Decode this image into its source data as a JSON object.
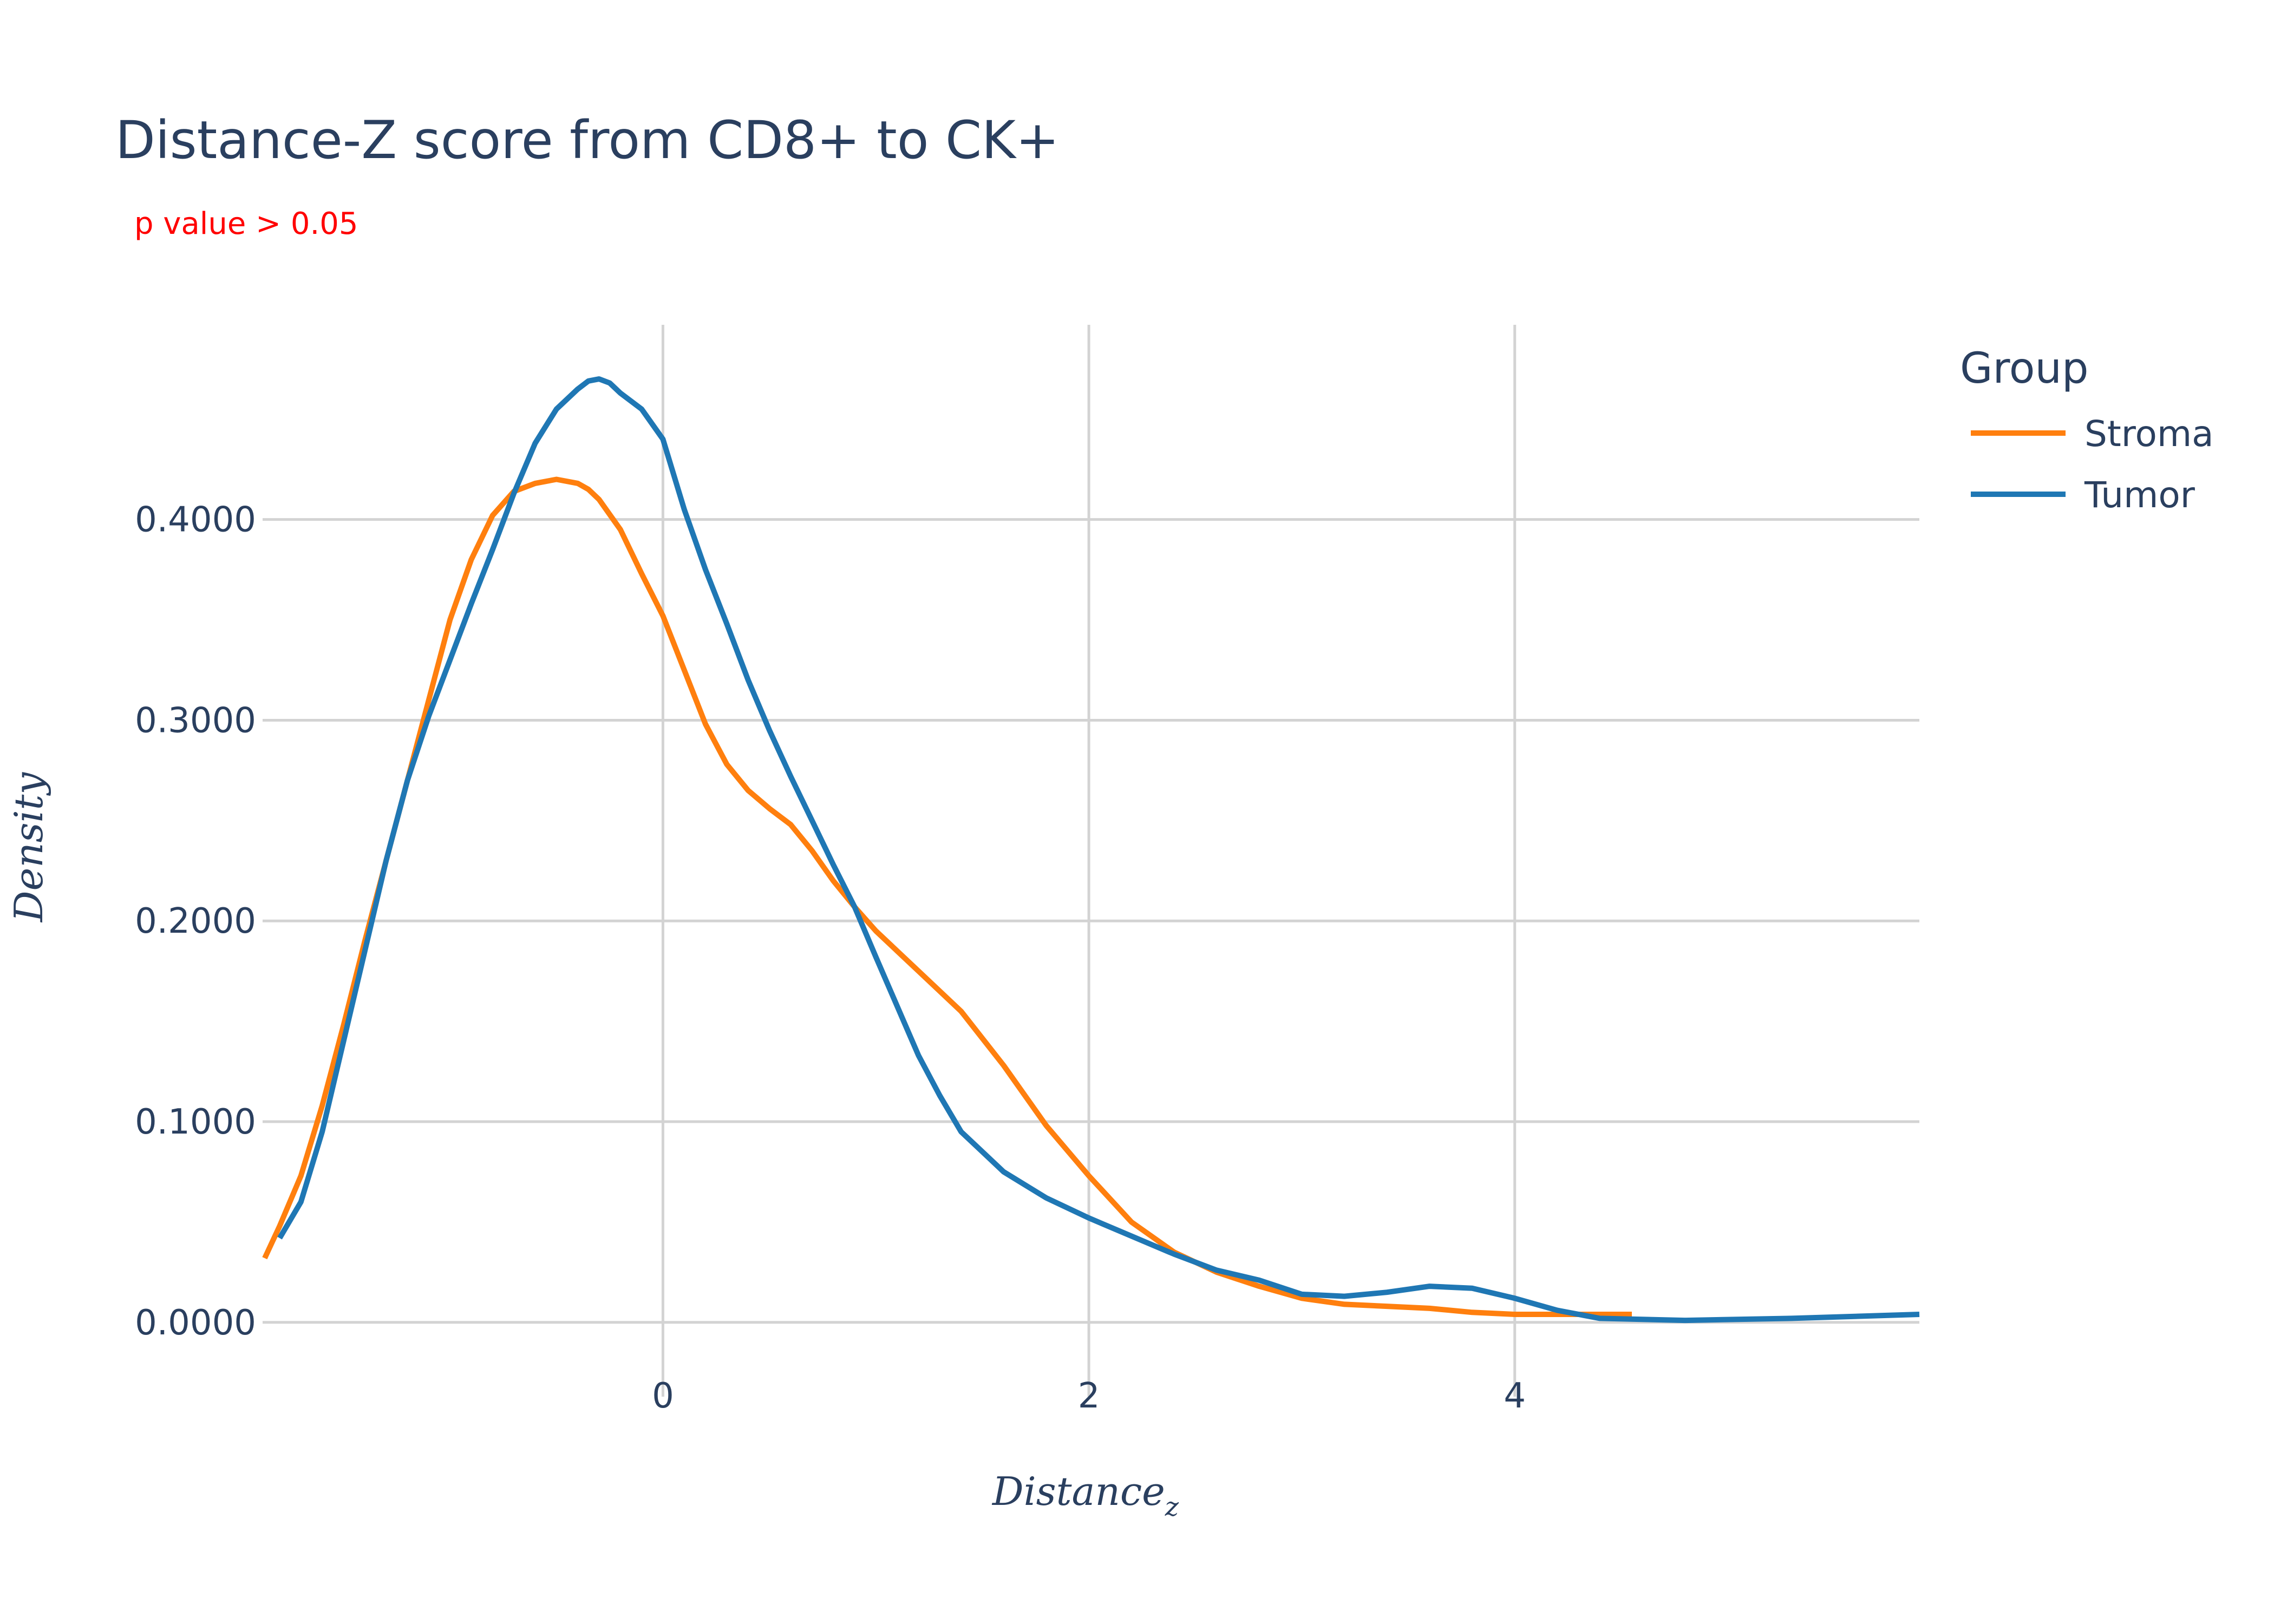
{
  "chart_data": {
    "type": "line",
    "title": "Distance-Z score from CD8+ to CK+",
    "subtitle": "p value > 0.05",
    "subtitle_color": "#ff0000",
    "xlabel": "Distance",
    "xlabel_subscript": "z",
    "ylabel": "Density",
    "xlim": [
      -1.88,
      5.9
    ],
    "ylim": [
      -0.037,
      0.497
    ],
    "x_ticks": [
      0,
      2,
      4
    ],
    "x_tick_labels": [
      "0",
      "2",
      "4"
    ],
    "y_ticks": [
      0,
      0.1,
      0.2,
      0.3,
      0.4
    ],
    "y_tick_labels": [
      "0.0000",
      "0.1000",
      "0.2000",
      "0.3000",
      "0.4000"
    ],
    "grid": true,
    "legend": {
      "title": "Group",
      "placement": "top-right"
    },
    "series": [
      {
        "name": "Stroma",
        "color": "#ff7f0e",
        "x": [
          -1.87,
          -1.8,
          -1.7,
          -1.6,
          -1.5,
          -1.4,
          -1.3,
          -1.2,
          -1.1,
          -1.0,
          -0.9,
          -0.8,
          -0.7,
          -0.6,
          -0.5,
          -0.4,
          -0.35,
          -0.3,
          -0.2,
          -0.1,
          0.0,
          0.1,
          0.2,
          0.3,
          0.4,
          0.5,
          0.6,
          0.7,
          0.8,
          0.9,
          1.0,
          1.2,
          1.4,
          1.6,
          1.8,
          2.0,
          2.2,
          2.4,
          2.6,
          2.8,
          3.0,
          3.2,
          3.4,
          3.6,
          3.8,
          4.0,
          4.2,
          4.4,
          4.55
        ],
        "y": [
          0.032,
          0.048,
          0.073,
          0.108,
          0.148,
          0.19,
          0.23,
          0.27,
          0.31,
          0.35,
          0.38,
          0.402,
          0.414,
          0.418,
          0.42,
          0.418,
          0.415,
          0.41,
          0.395,
          0.373,
          0.352,
          0.325,
          0.298,
          0.278,
          0.265,
          0.256,
          0.248,
          0.235,
          0.22,
          0.207,
          0.195,
          0.175,
          0.155,
          0.128,
          0.098,
          0.073,
          0.05,
          0.035,
          0.025,
          0.018,
          0.012,
          0.009,
          0.008,
          0.007,
          0.005,
          0.004,
          0.004,
          0.004,
          0.004
        ]
      },
      {
        "name": "Tumor",
        "color": "#1f77b4",
        "x": [
          -1.8,
          -1.7,
          -1.6,
          -1.5,
          -1.4,
          -1.3,
          -1.2,
          -1.1,
          -1.0,
          -0.9,
          -0.8,
          -0.7,
          -0.6,
          -0.5,
          -0.4,
          -0.35,
          -0.3,
          -0.25,
          -0.2,
          -0.1,
          0.0,
          0.1,
          0.2,
          0.3,
          0.4,
          0.5,
          0.6,
          0.7,
          0.8,
          0.9,
          1.0,
          1.2,
          1.3,
          1.4,
          1.5,
          1.6,
          1.8,
          2.0,
          2.2,
          2.4,
          2.6,
          2.8,
          3.0,
          3.2,
          3.4,
          3.6,
          3.8,
          4.0,
          4.2,
          4.4,
          4.8,
          5.3,
          5.9
        ],
        "y": [
          0.042,
          0.06,
          0.095,
          0.14,
          0.185,
          0.23,
          0.27,
          0.302,
          0.33,
          0.358,
          0.385,
          0.413,
          0.438,
          0.455,
          0.465,
          0.469,
          0.47,
          0.468,
          0.463,
          0.455,
          0.44,
          0.405,
          0.375,
          0.348,
          0.32,
          0.295,
          0.272,
          0.25,
          0.228,
          0.207,
          0.182,
          0.133,
          0.113,
          0.095,
          0.085,
          0.075,
          0.062,
          0.052,
          0.043,
          0.034,
          0.026,
          0.021,
          0.014,
          0.013,
          0.015,
          0.018,
          0.017,
          0.012,
          0.006,
          0.002,
          0.001,
          0.002,
          0.004
        ]
      }
    ]
  }
}
